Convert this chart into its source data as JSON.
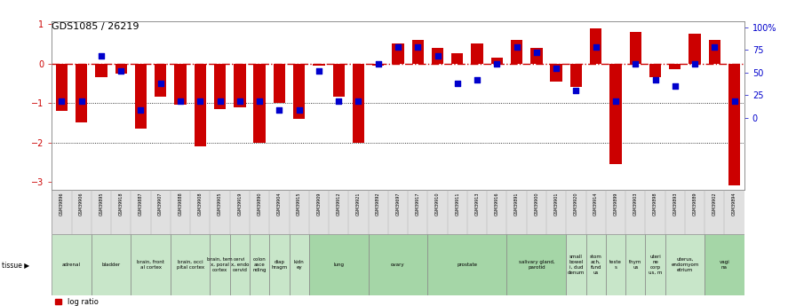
{
  "title": "GDS1085 / 26219",
  "samples": [
    "GSM39896",
    "GSM39906",
    "GSM39895",
    "GSM39918",
    "GSM39887",
    "GSM39907",
    "GSM39888",
    "GSM39908",
    "GSM39905",
    "GSM39919",
    "GSM39890",
    "GSM39904",
    "GSM39915",
    "GSM39909",
    "GSM39912",
    "GSM39921",
    "GSM39892",
    "GSM39697",
    "GSM39917",
    "GSM39910",
    "GSM39911",
    "GSM39913",
    "GSM39916",
    "GSM39891",
    "GSM39900",
    "GSM39901",
    "GSM39920",
    "GSM39914",
    "GSM39899",
    "GSM39903",
    "GSM39898",
    "GSM39893",
    "GSM39889",
    "GSM39902",
    "GSM39894"
  ],
  "log_ratio": [
    -1.2,
    -1.5,
    -0.35,
    -0.25,
    -1.65,
    -0.85,
    -1.05,
    -2.1,
    -1.15,
    -1.1,
    -2.0,
    -1.0,
    -1.4,
    -0.05,
    -0.85,
    -2.0,
    -0.05,
    0.5,
    0.6,
    0.4,
    0.25,
    0.5,
    0.15,
    0.6,
    0.4,
    -0.45,
    -0.6,
    0.9,
    -2.55,
    0.8,
    -0.35,
    -0.15,
    0.75,
    0.6,
    -3.1
  ],
  "pct_rank": [
    18,
    18,
    68,
    52,
    8,
    38,
    18,
    18,
    18,
    18,
    18,
    8,
    8,
    52,
    18,
    18,
    60,
    78,
    78,
    68,
    38,
    42,
    60,
    78,
    72,
    55,
    30,
    78,
    18,
    60,
    42,
    35,
    60,
    78,
    18
  ],
  "tissues": [
    {
      "label": "adrenal",
      "start": 0,
      "end": 2,
      "color": "#c8e6c9"
    },
    {
      "label": "bladder",
      "start": 2,
      "end": 4,
      "color": "#c8e6c9"
    },
    {
      "label": "brain, front\nal cortex",
      "start": 4,
      "end": 6,
      "color": "#c8e6c9"
    },
    {
      "label": "brain, occi\npital cortex",
      "start": 6,
      "end": 8,
      "color": "#c8e6c9"
    },
    {
      "label": "brain, tem\nx, poral\ncortex",
      "start": 8,
      "end": 9,
      "color": "#c8e6c9"
    },
    {
      "label": "cervi\nx, endo\ncervid",
      "start": 9,
      "end": 10,
      "color": "#c8e6c9"
    },
    {
      "label": "colon\nasce\nnding",
      "start": 10,
      "end": 11,
      "color": "#c8e6c9"
    },
    {
      "label": "diap\nhragm",
      "start": 11,
      "end": 12,
      "color": "#c8e6c9"
    },
    {
      "label": "kidn\ney",
      "start": 12,
      "end": 13,
      "color": "#c8e6c9"
    },
    {
      "label": "lung",
      "start": 13,
      "end": 16,
      "color": "#a5d6a7"
    },
    {
      "label": "ovary",
      "start": 16,
      "end": 19,
      "color": "#a5d6a7"
    },
    {
      "label": "prostate",
      "start": 19,
      "end": 23,
      "color": "#a5d6a7"
    },
    {
      "label": "salivary gland,\nparotid",
      "start": 23,
      "end": 26,
      "color": "#a5d6a7"
    },
    {
      "label": "small\nbowel\ni, dud\ndenum",
      "start": 26,
      "end": 27,
      "color": "#c8e6c9"
    },
    {
      "label": "stom\nach,\nfund\nus",
      "start": 27,
      "end": 28,
      "color": "#c8e6c9"
    },
    {
      "label": "teste\ns",
      "start": 28,
      "end": 29,
      "color": "#c8e6c9"
    },
    {
      "label": "thym\nus",
      "start": 29,
      "end": 30,
      "color": "#c8e6c9"
    },
    {
      "label": "uteri\nne\ncorp\nus, m",
      "start": 30,
      "end": 31,
      "color": "#c8e6c9"
    },
    {
      "label": "uterus,\nendomyom\netrium",
      "start": 31,
      "end": 33,
      "color": "#c8e6c9"
    },
    {
      "label": "vagi\nna",
      "start": 33,
      "end": 35,
      "color": "#a5d6a7"
    }
  ],
  "bar_color": "#cc0000",
  "dot_color": "#0000cc",
  "zero_line_color": "#cc0000",
  "bg_color": "#ffffff",
  "ylim_left": [
    -3.2,
    1.067
  ],
  "ylim_right": [
    -80,
    106.7
  ],
  "left_ticks": [
    -3,
    -2,
    -1,
    0,
    1
  ],
  "right_ticks": [
    0,
    25,
    50,
    75,
    100
  ],
  "right_tick_labels": [
    "0",
    "25",
    "50",
    "75",
    "100%"
  ]
}
